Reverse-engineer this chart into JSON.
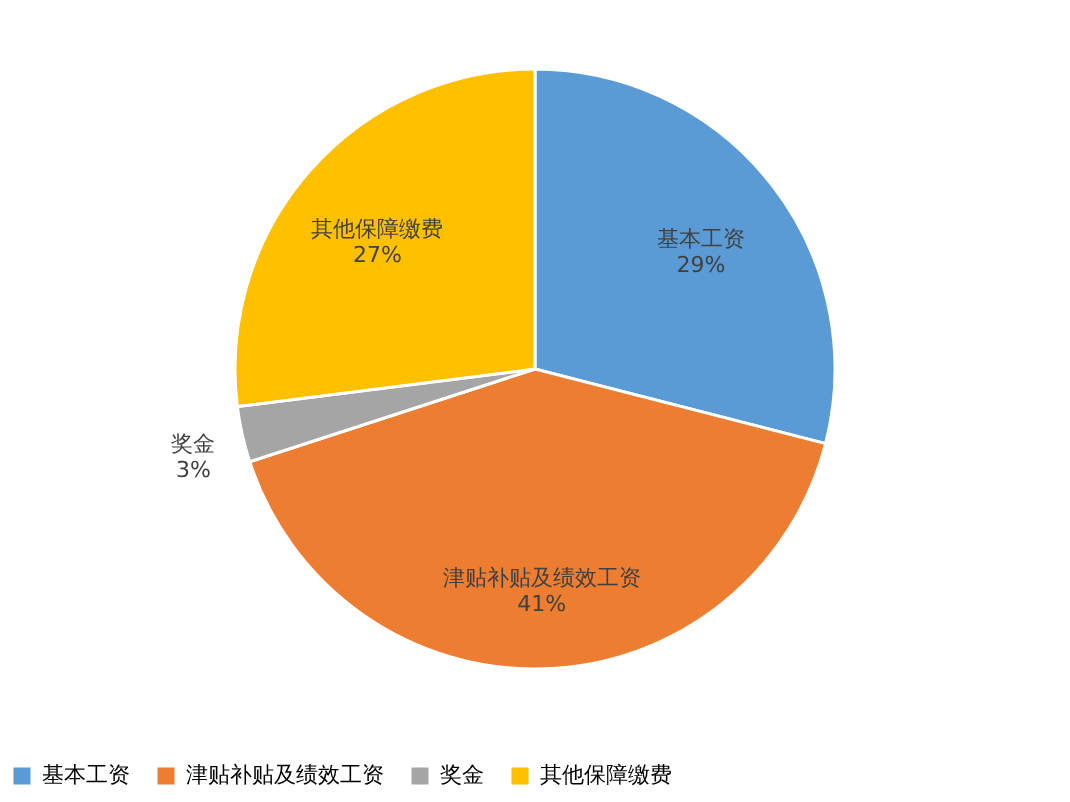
{
  "chart_data": {
    "type": "pie",
    "categories": [
      "基本工资",
      "津贴补贴及绩效工资",
      "奖金",
      "其他保障缴费"
    ],
    "values": [
      29,
      41,
      3,
      27
    ],
    "colors": [
      "#5b9bd5",
      "#ed7d31",
      "#a5a5a5",
      "#ffc000"
    ],
    "value_labels": [
      "29%",
      "41%",
      "3%",
      "27%"
    ],
    "legend": "bottom"
  }
}
